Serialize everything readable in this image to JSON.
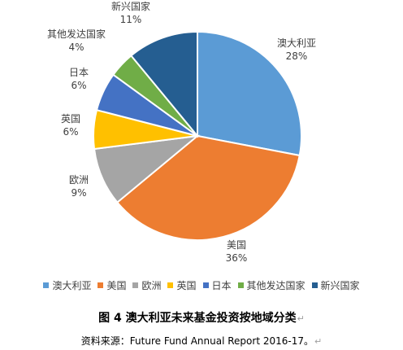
{
  "chart_data": {
    "type": "pie",
    "series": [
      {
        "categories": [
          "澳大利亚",
          "美国",
          "欧洲",
          "英国",
          "日本",
          "其他发达国家",
          "新兴国家"
        ],
        "values": [
          28,
          36,
          9,
          6,
          6,
          4,
          11
        ],
        "value_labels": [
          "28%",
          "36%",
          "9%",
          "6%",
          "6%",
          "4%",
          "11%"
        ],
        "colors": [
          "#5B9BD5",
          "#ED7D31",
          "#A5A5A5",
          "#FFC000",
          "#4472C4",
          "#70AD47",
          "#255E91"
        ]
      }
    ],
    "legend": {
      "position": "bottom",
      "entries": [
        "澳大利亚",
        "美国",
        "欧洲",
        "英国",
        "日本",
        "其他发达国家",
        "新兴国家"
      ]
    },
    "start_angle": "top",
    "direction": "clockwise"
  },
  "caption": {
    "title": "图 4 澳大利亚未来基金投资按地域分类",
    "source": "资料来源：Future Fund Annual Report 2016-17。",
    "paragraph_mark": "↵"
  }
}
